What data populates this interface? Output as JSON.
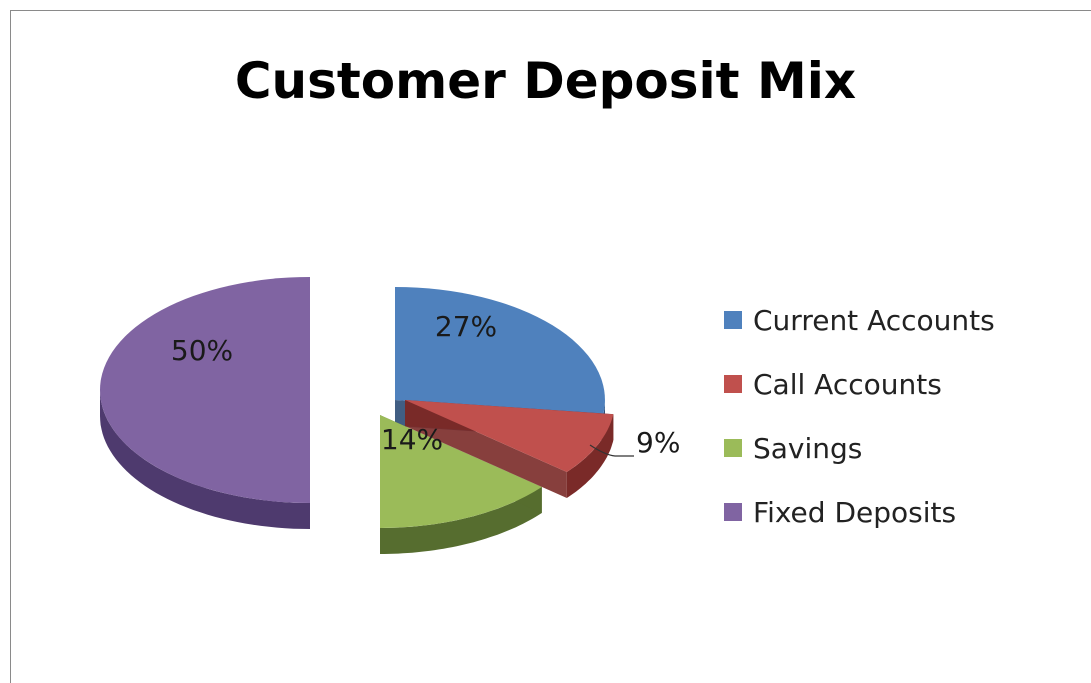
{
  "chart_data": {
    "type": "pie",
    "title": "Customer Deposit Mix",
    "slices": [
      {
        "name": "Current Accounts",
        "value": 27,
        "label": "27%",
        "color": "#4f81bd"
      },
      {
        "name": "Call Accounts",
        "value": 9,
        "label": "9%",
        "color": "#c0504d"
      },
      {
        "name": "Savings",
        "value": 14,
        "label": "14%",
        "color": "#9bbb59"
      },
      {
        "name": "Fixed Deposits",
        "value": 50,
        "label": "50%",
        "color": "#8064a2"
      }
    ],
    "legend_position": "right",
    "style": "3d-exploded"
  }
}
